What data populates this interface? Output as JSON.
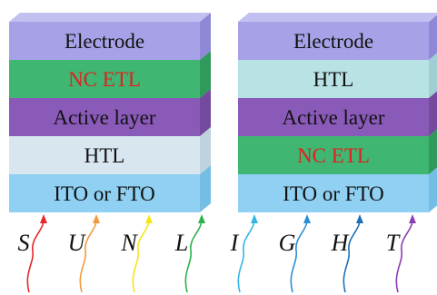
{
  "stacks": [
    {
      "layers": [
        {
          "label": "Electrode",
          "front": "#a7a2e8",
          "top": "#c2bff1",
          "side": "#8e88d6",
          "text_color": "#111111"
        },
        {
          "label": "NC ETL",
          "front": "#3fb671",
          "top": "#6fd195",
          "side": "#2f9a5c",
          "text_color": "#e02020"
        },
        {
          "label": "Active layer",
          "front": "#8a5ab8",
          "top": "#a67fcf",
          "side": "#744a9e",
          "text_color": "#111111"
        },
        {
          "label": "HTL",
          "front": "#d7e6ef",
          "top": "#e8f2f7",
          "side": "#bfd3df",
          "text_color": "#111111"
        },
        {
          "label": "ITO or FTO",
          "front": "#8fd0f3",
          "top": "#b2e0f8",
          "side": "#74bde4",
          "text_color": "#111111"
        }
      ]
    },
    {
      "layers": [
        {
          "label": "Electrode",
          "front": "#a7a2e8",
          "top": "#c2bff1",
          "side": "#8e88d6",
          "text_color": "#111111"
        },
        {
          "label": "HTL",
          "front": "#b9e2e4",
          "top": "#d3eef0",
          "side": "#9fcfd2",
          "text_color": "#111111"
        },
        {
          "label": "Active layer",
          "front": "#8a5ab8",
          "top": "#a67fcf",
          "side": "#744a9e",
          "text_color": "#111111"
        },
        {
          "label": "NC ETL",
          "front": "#3fb671",
          "top": "#6fd195",
          "side": "#2f9a5c",
          "text_color": "#e02020"
        },
        {
          "label": "ITO or FTO",
          "front": "#8fd0f3",
          "top": "#b2e0f8",
          "side": "#74bde4",
          "text_color": "#111111"
        }
      ]
    }
  ],
  "sunlight": [
    {
      "letter": "S",
      "color": "#e8262b"
    },
    {
      "letter": "U",
      "color": "#f39a3c"
    },
    {
      "letter": "N",
      "color": "#f4e61a"
    },
    {
      "letter": "L",
      "color": "#2bb24c"
    },
    {
      "letter": "I",
      "color": "#34b6e6"
    },
    {
      "letter": "G",
      "color": "#2a8fd6"
    },
    {
      "letter": "H",
      "color": "#1f6fb8"
    },
    {
      "letter": "T",
      "color": "#8a3fb3"
    }
  ]
}
